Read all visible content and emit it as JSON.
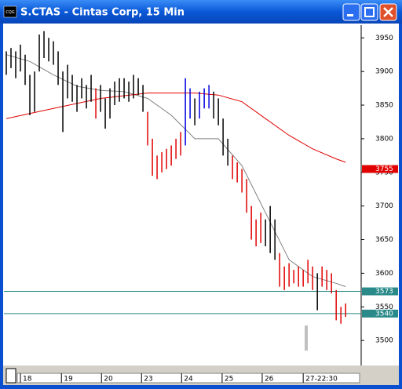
{
  "window": {
    "icon": "CQG",
    "title": "S.CTAS - Cintas Corp, 15 Min"
  },
  "chart_data": {
    "type": "ohlc",
    "x": [
      0,
      1,
      2,
      3,
      4,
      5,
      6,
      7,
      8,
      9,
      10,
      11,
      12,
      13,
      14,
      15,
      16,
      17,
      18,
      19,
      20,
      21,
      22,
      23,
      24,
      25,
      26,
      27,
      28,
      29,
      30,
      31,
      32,
      33,
      34,
      35,
      36,
      37,
      38,
      39,
      40,
      41,
      42,
      43,
      44,
      45,
      46,
      47,
      48,
      49,
      50,
      51,
      52,
      53,
      54,
      55,
      56,
      57,
      58,
      59,
      60,
      61,
      62,
      63,
      64,
      65,
      66,
      67,
      68,
      69,
      70,
      71,
      72
    ],
    "low": [
      3895,
      3905,
      3890,
      3900,
      3880,
      3835,
      3840,
      3900,
      3920,
      3915,
      3910,
      3880,
      3810,
      3860,
      3855,
      3840,
      3860,
      3845,
      3855,
      3830,
      3840,
      3815,
      3830,
      3850,
      3855,
      3860,
      3855,
      3860,
      3865,
      3840,
      3790,
      3745,
      3740,
      3750,
      3755,
      3760,
      3770,
      3775,
      3790,
      3830,
      3820,
      3830,
      3845,
      3845,
      3830,
      3820,
      3775,
      3760,
      3740,
      3735,
      3720,
      3690,
      3650,
      3640,
      3645,
      3640,
      3630,
      3620,
      3580,
      3575,
      3580,
      3585,
      3580,
      3580,
      3585,
      3575,
      3545,
      3580,
      3575,
      3570,
      3530,
      3525,
      3535
    ],
    "high": [
      3930,
      3935,
      3930,
      3940,
      3925,
      3895,
      3900,
      3955,
      3960,
      3950,
      3945,
      3930,
      3900,
      3910,
      3895,
      3880,
      3890,
      3880,
      3895,
      3875,
      3880,
      3860,
      3875,
      3885,
      3890,
      3890,
      3885,
      3895,
      3890,
      3880,
      3840,
      3800,
      3775,
      3780,
      3785,
      3790,
      3800,
      3810,
      3890,
      3875,
      3860,
      3870,
      3875,
      3880,
      3870,
      3860,
      3830,
      3800,
      3775,
      3765,
      3755,
      3740,
      3700,
      3680,
      3690,
      3680,
      3700,
      3680,
      3630,
      3610,
      3615,
      3605,
      3610,
      3605,
      3620,
      3610,
      3600,
      3610,
      3605,
      3600,
      3575,
      3550,
      3555
    ],
    "bar_colors": [
      "#000",
      "#000",
      "#000",
      "#000",
      "#000",
      "#000",
      "#000",
      "#000",
      "#000",
      "#000",
      "#000",
      "#000",
      "#000",
      "#000",
      "#000",
      "#000",
      "#000",
      "#000",
      "#000",
      "#e00000",
      "#000",
      "#000",
      "#000",
      "#000",
      "#000",
      "#000",
      "#000",
      "#000",
      "#000",
      "#000",
      "#e00000",
      "#e00000",
      "#e00000",
      "#e00000",
      "#e00000",
      "#e00000",
      "#e00000",
      "#e00000",
      "#0000e0",
      "#0000e0",
      "#000",
      "#0000e0",
      "#0000e0",
      "#0000e0",
      "#000",
      "#000",
      "#000",
      "#000",
      "#e00000",
      "#e00000",
      "#e00000",
      "#e00000",
      "#e00000",
      "#e00000",
      "#e00000",
      "#000",
      "#000",
      "#000",
      "#e00000",
      "#e00000",
      "#e00000",
      "#e00000",
      "#e00000",
      "#e00000",
      "#e00000",
      "#e00000",
      "#000",
      "#e00000",
      "#e00000",
      "#e00000",
      "#e00000",
      "#e00000",
      "#e00000"
    ],
    "averages": [
      {
        "color": "#808080",
        "x": [
          0,
          5,
          10,
          15,
          20,
          25,
          30,
          35,
          40,
          45,
          50,
          55,
          60,
          65,
          70,
          72
        ],
        "values": [
          3925,
          3915,
          3895,
          3878,
          3872,
          3870,
          3860,
          3835,
          3800,
          3800,
          3760,
          3690,
          3620,
          3595,
          3585,
          3580
        ]
      },
      {
        "color": "#e00000",
        "x": [
          0,
          10,
          20,
          30,
          40,
          45,
          50,
          55,
          60,
          65,
          70,
          72
        ],
        "values": [
          3830,
          3845,
          3860,
          3868,
          3868,
          3865,
          3855,
          3830,
          3805,
          3785,
          3770,
          3765
        ]
      }
    ],
    "levels": [
      {
        "value": 3573,
        "color": "#2a8a8a"
      },
      {
        "value": 3540,
        "color": "#2a8a8a"
      }
    ],
    "price_tag": {
      "value": 3755,
      "color": "#e00000"
    },
    "xlim": [
      -0.5,
      75.3
    ],
    "ylim": [
      3464,
      3969
    ],
    "yticks": [
      3950,
      3900,
      3850,
      3800,
      3750,
      3700,
      3650,
      3600,
      3550,
      3500
    ],
    "xticks": [
      {
        "value": 4,
        "label": "18"
      },
      {
        "value": 12.7,
        "label": "19"
      },
      {
        "value": 21.2,
        "label": "20"
      },
      {
        "value": 29.7,
        "label": "23"
      },
      {
        "value": 38.2,
        "label": "24"
      },
      {
        "value": 46.8,
        "label": "25"
      },
      {
        "value": 55.3,
        "label": "26"
      },
      {
        "value": 64,
        "label": "27-22:30"
      }
    ]
  }
}
